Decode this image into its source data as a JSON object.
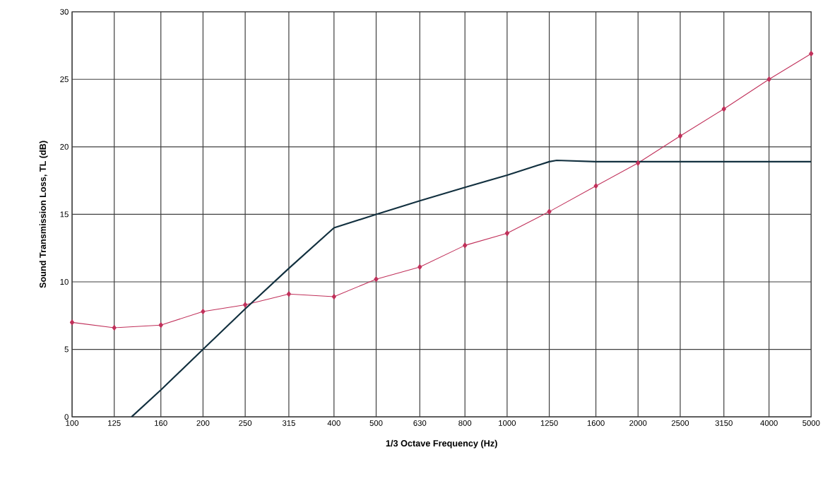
{
  "chart_data": {
    "type": "line",
    "xlabel": "1/3 Octave Frequency (Hz)",
    "ylabel": "Sound Transmission Loss, TL (dB)",
    "log": "x",
    "grid": true,
    "xlim": [
      100,
      5000
    ],
    "ylim": [
      0,
      30
    ],
    "xticks": [
      100,
      125,
      160,
      200,
      250,
      315,
      400,
      500,
      630,
      800,
      1000,
      1250,
      1600,
      2000,
      2500,
      3150,
      4000,
      5000
    ],
    "yticks": [
      0,
      5,
      10,
      15,
      20,
      25,
      30
    ],
    "series": [
      {
        "color": "#c0305a",
        "marker": "diamond",
        "x": [
          100,
          125,
          160,
          200,
          250,
          315,
          400,
          500,
          630,
          800,
          1000,
          1250,
          1600,
          2000,
          2500,
          3150,
          4000,
          5000
        ],
        "values": [
          7.0,
          6.6,
          6.8,
          7.8,
          8.3,
          9.1,
          8.9,
          10.2,
          11.1,
          12.7,
          13.6,
          15.2,
          17.1,
          18.8,
          20.8,
          22.8,
          25.0,
          26.9
        ]
      },
      {
        "color": "#12303f",
        "marker": "none",
        "x": [
          137,
          160,
          200,
          250,
          315,
          400,
          500,
          630,
          800,
          1000,
          1250,
          1300,
          1600,
          2000,
          2500,
          3150,
          4000,
          5000
        ],
        "values": [
          0,
          2,
          5,
          8,
          11,
          14,
          15,
          16,
          17,
          17.9,
          18.9,
          19.0,
          18.9,
          18.9,
          18.9,
          18.9,
          18.9,
          18.9
        ]
      }
    ]
  }
}
